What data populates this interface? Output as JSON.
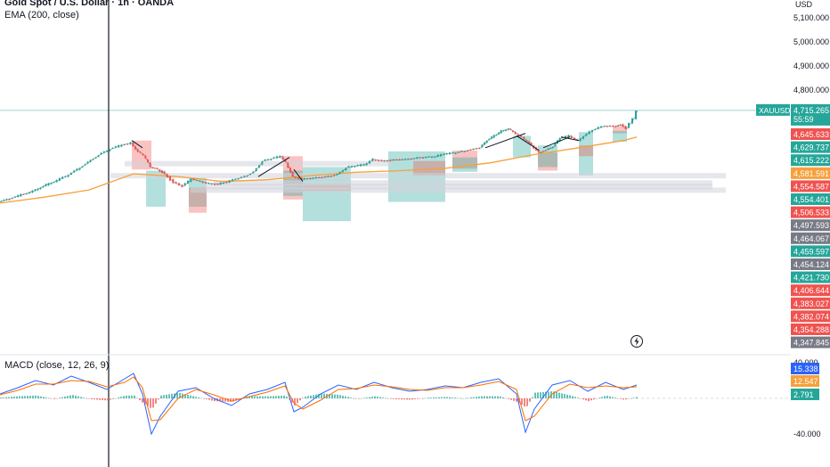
{
  "header": {
    "symbol_title": "Gold Spot / U.S. Dollar · 1h · OANDA",
    "ema_legend": "EMA (200, close)",
    "currency": "USD"
  },
  "macd": {
    "legend": "MACD (close, 12, 26, 9)"
  },
  "price_badge": {
    "ticker": "XAUUSD",
    "value": "4,715.265",
    "countdown": "55:59"
  },
  "colors": {
    "up": "#26a69a",
    "down": "#ef5350",
    "ema": "#f7a03c",
    "macd_line": "#2962ff",
    "signal_line": "#ff6d00",
    "current_price_line": "#26a69a",
    "zone_green": "#26a69a",
    "zone_red": "#ef5350",
    "level_gray": "#d1d4dc"
  },
  "chart_data": [
    {
      "type": "line",
      "title": "Gold Spot / U.S. Dollar · 1h · OANDA",
      "series": [
        {
          "name": "EMA (200, close)",
          "x": [
            0,
            50,
            100,
            150,
            200,
            250,
            300,
            350,
            400,
            450,
            500,
            550,
            600,
            650,
            700,
            715
          ],
          "values": [
            4330,
            4355,
            4385,
            4452,
            4440,
            4420,
            4427,
            4445,
            4458,
            4465,
            4475,
            4497,
            4532,
            4560,
            4590,
            4605
          ]
        },
        {
          "name": "XAUUSD",
          "x": [
            0,
            12,
            25,
            38,
            50,
            62,
            75,
            88,
            100,
            112,
            125,
            138,
            148,
            156,
            162,
            170,
            178,
            186,
            196,
            206,
            216,
            226,
            236,
            246,
            256,
            266,
            276,
            286,
            296,
            306,
            316,
            322,
            330,
            340,
            350,
            360,
            370,
            380,
            390,
            400,
            410,
            420,
            430,
            440,
            450,
            460,
            470,
            480,
            490,
            500,
            510,
            520,
            530,
            540,
            548,
            556,
            564,
            572,
            580,
            590,
            598,
            606,
            614,
            622,
            630,
            640,
            650,
            660,
            670,
            680,
            690,
            698,
            704,
            708,
            712,
            716
          ],
          "values": [
            4335,
            4348,
            4365,
            4380,
            4402,
            4420,
            4442,
            4470,
            4500,
            4530,
            4555,
            4572,
            4580,
            4545,
            4530,
            4480,
            4470,
            4450,
            4415,
            4400,
            4430,
            4420,
            4412,
            4410,
            4418,
            4430,
            4440,
            4460,
            4505,
            4515,
            4525,
            4500,
            4440,
            4430,
            4432,
            4436,
            4440,
            4450,
            4478,
            4485,
            4490,
            4512,
            4505,
            4508,
            4510,
            4512,
            4518,
            4522,
            4524,
            4535,
            4538,
            4545,
            4552,
            4560,
            4590,
            4610,
            4630,
            4640,
            4620,
            4595,
            4570,
            4540,
            4550,
            4565,
            4600,
            4610,
            4590,
            4620,
            4640,
            4650,
            4648,
            4655,
            4640,
            4660,
            4680,
            4715
          ]
        }
      ],
      "price_axis_labels": [
        "5,100.000",
        "5,000.000",
        "4,900.000",
        "4,800.000"
      ],
      "price_scale_labels": [
        {
          "text": "4,645.633",
          "color": "#ef5350"
        },
        {
          "text": "4,629.737",
          "color": "#26a69a"
        },
        {
          "text": "4,615.222",
          "color": "#26a69a"
        },
        {
          "text": "4,581.591",
          "color": "#f7a03c"
        },
        {
          "text": "4,554.587",
          "color": "#ef5350"
        },
        {
          "text": "4,554.401",
          "color": "#26a69a"
        },
        {
          "text": "4,506.533",
          "color": "#ef5350"
        },
        {
          "text": "4,497.593",
          "color": "#787b86"
        },
        {
          "text": "4,464.067",
          "color": "#787b86"
        },
        {
          "text": "4,459.597",
          "color": "#26a69a"
        },
        {
          "text": "4,454.124",
          "color": "#787b86"
        },
        {
          "text": "4,421.730",
          "color": "#26a69a"
        },
        {
          "text": "4,406.644",
          "color": "#ef5350"
        },
        {
          "text": "4,383.027",
          "color": "#ef5350"
        },
        {
          "text": "4,382.074",
          "color": "#ef5350"
        },
        {
          "text": "4,354.288",
          "color": "#ef5350"
        },
        {
          "text": "4,347.845",
          "color": "#787b86"
        }
      ],
      "ylim": [
        4330,
        5120
      ],
      "grid": false,
      "legend": "top-left"
    },
    {
      "type": "line",
      "title": "MACD (close, 12, 26, 9)",
      "series": [
        {
          "name": "MACD",
          "x": [
            0,
            20,
            40,
            60,
            80,
            100,
            120,
            140,
            150,
            160,
            170,
            180,
            200,
            220,
            240,
            260,
            280,
            300,
            320,
            330,
            340,
            360,
            380,
            400,
            420,
            440,
            460,
            480,
            500,
            520,
            540,
            560,
            580,
            590,
            600,
            620,
            640,
            660,
            680,
            700,
            715
          ],
          "values": [
            5,
            12,
            20,
            15,
            25,
            18,
            10,
            22,
            28,
            5,
            -40,
            -20,
            8,
            12,
            0,
            -8,
            5,
            10,
            18,
            -15,
            -10,
            5,
            15,
            10,
            18,
            12,
            8,
            10,
            14,
            12,
            18,
            22,
            5,
            -38,
            -12,
            15,
            20,
            8,
            18,
            10,
            15
          ]
        },
        {
          "name": "Signal",
          "x": [
            0,
            20,
            40,
            60,
            80,
            100,
            120,
            140,
            150,
            160,
            170,
            180,
            200,
            220,
            240,
            260,
            280,
            300,
            320,
            330,
            340,
            360,
            380,
            400,
            420,
            440,
            460,
            480,
            500,
            520,
            540,
            560,
            580,
            590,
            600,
            620,
            640,
            660,
            680,
            700,
            715
          ],
          "values": [
            4,
            9,
            16,
            16,
            20,
            19,
            13,
            18,
            24,
            12,
            -25,
            -24,
            0,
            10,
            4,
            -3,
            2,
            7,
            14,
            -5,
            -12,
            -2,
            10,
            11,
            15,
            13,
            10,
            9,
            12,
            12,
            15,
            19,
            10,
            -25,
            -20,
            5,
            16,
            12,
            14,
            12,
            13
          ]
        }
      ],
      "axis_labels": [
        "40.000",
        "-40.000"
      ],
      "price_scale_labels": [
        {
          "text": "15.338",
          "color": "#2962ff"
        },
        {
          "text": "12.547",
          "color": "#f7a03c"
        },
        {
          "text": "2.791",
          "color": "#26a69a"
        }
      ],
      "ylim": [
        -50,
        50
      ],
      "grid": false,
      "legend": "top-left"
    }
  ]
}
